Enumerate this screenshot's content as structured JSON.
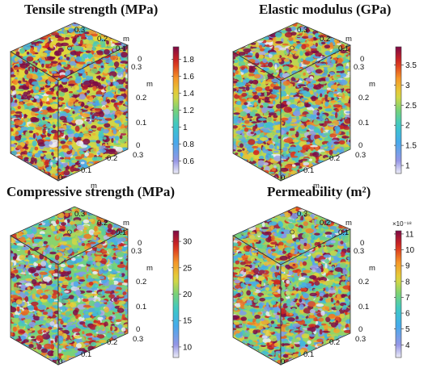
{
  "panels": [
    {
      "title": "Tensile strength (MPa)",
      "colorbar": {
        "min": 0.45,
        "max": 1.95,
        "ticks": [
          "0.6",
          "0.8",
          "1",
          "1.2",
          "1.4",
          "1.6",
          "1.8"
        ],
        "values": [
          0.6,
          0.8,
          1.0,
          1.2,
          1.4,
          1.6,
          1.8
        ]
      },
      "axis_ticks": [
        "0",
        "0.1",
        "0.2",
        "0.3"
      ],
      "axis_unit": "m",
      "bias": 0.62
    },
    {
      "title": "Elastic modulus (GPa)",
      "colorbar": {
        "min": 0.8,
        "max": 3.95,
        "ticks": [
          "1",
          "1.5",
          "2",
          "2.5",
          "3",
          "3.5"
        ],
        "values": [
          1.0,
          1.5,
          2.0,
          2.5,
          3.0,
          3.5
        ]
      },
      "axis_ticks": [
        "0",
        "0.1",
        "0.2",
        "0.3"
      ],
      "axis_unit": "m",
      "bias": 0.58
    },
    {
      "title": "Compressive strength (MPa)",
      "colorbar": {
        "min": 8,
        "max": 32,
        "ticks": [
          "10",
          "15",
          "20",
          "25",
          "30"
        ],
        "values": [
          10,
          15,
          20,
          25,
          30
        ]
      },
      "axis_ticks": [
        "0",
        "0.1",
        "0.2",
        "0.3"
      ],
      "axis_unit": "m",
      "bias": 0.52
    },
    {
      "title": "Permeability  (m²)",
      "colorbar": {
        "min": 3.2,
        "max": 11.2,
        "ticks": [
          "4",
          "5",
          "6",
          "7",
          "8",
          "9",
          "10",
          "11"
        ],
        "values": [
          4,
          5,
          6,
          7,
          8,
          9,
          10,
          11
        ],
        "exponent": "×10⁻¹⁸"
      },
      "axis_ticks": [
        "0",
        "0.1",
        "0.2",
        "0.3"
      ],
      "axis_unit": "m",
      "bias": 0.55
    }
  ]
}
